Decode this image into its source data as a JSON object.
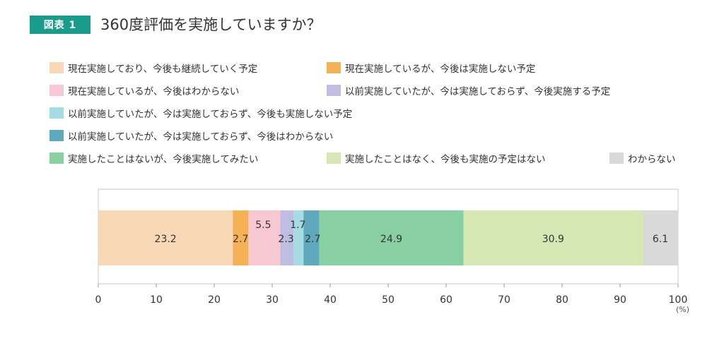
{
  "figure": {
    "badge": "図表 1",
    "title": "360度評価を実施していますか？"
  },
  "legend": {
    "items": [
      {
        "label": "現在実施しており、今後も継続していく予定",
        "color": "#f9d9b5"
      },
      {
        "label": "現在実施しているが、今後は実施しない予定",
        "color": "#f5b155"
      },
      {
        "label": "現在実施しているが、今後はわからない",
        "color": "#f8c8d2"
      },
      {
        "label": "以前実施していたが、今は実施しておらず、今後実施する予定",
        "color": "#c0bde3"
      },
      {
        "label": "以前実施していたが、今は実施しておらず、今後も実施しない予定",
        "color": "#a6dde5"
      },
      {
        "label": "以前実施していたが、今は実施しておらず、今後はわからない",
        "color": "#5fa9bc"
      },
      {
        "label": "実施したことはないが、今後実施してみたい",
        "color": "#88d0a2"
      },
      {
        "label": "実施したことはなく、今後も実施の予定はない",
        "color": "#d5e8b3"
      },
      {
        "label": "わからない",
        "color": "#d9d9d9"
      }
    ]
  },
  "unit_label": "(%)",
  "chart_data": {
    "type": "bar",
    "stacked": true,
    "orientation": "horizontal",
    "series": [
      {
        "name": "現在実施しており、今後も継続していく予定",
        "values": [
          23.2
        ],
        "label": "23.2"
      },
      {
        "name": "現在実施しているが、今後は実施しない予定",
        "values": [
          2.7
        ],
        "label": "2.7"
      },
      {
        "name": "現在実施しているが、今後はわからない",
        "values": [
          5.5
        ],
        "label": "5.5"
      },
      {
        "name": "以前実施していたが、今は実施しておらず、今後実施する予定",
        "values": [
          2.3
        ],
        "label": "2.3"
      },
      {
        "name": "以前実施していたが、今は実施しておらず、今後も実施しない予定",
        "values": [
          1.7
        ],
        "label": "1.7"
      },
      {
        "name": "以前実施していたが、今は実施しておらず、今後はわからない",
        "values": [
          2.7
        ],
        "label": "2.7"
      },
      {
        "name": "実施したことはないが、今後実施してみたい",
        "values": [
          24.9
        ],
        "label": "24.9"
      },
      {
        "name": "実施したことはなく、今後も実施の予定はない",
        "values": [
          30.9
        ],
        "label": "30.9"
      },
      {
        "name": "わからない",
        "values": [
          6.1
        ],
        "label": "6.1"
      }
    ],
    "xlim": [
      0,
      100
    ],
    "xticks": [
      "0",
      "10",
      "20",
      "30",
      "40",
      "50",
      "60",
      "70",
      "80",
      "90",
      "100"
    ],
    "xlabel": "(%)",
    "grid": false,
    "legend_position": "top"
  }
}
